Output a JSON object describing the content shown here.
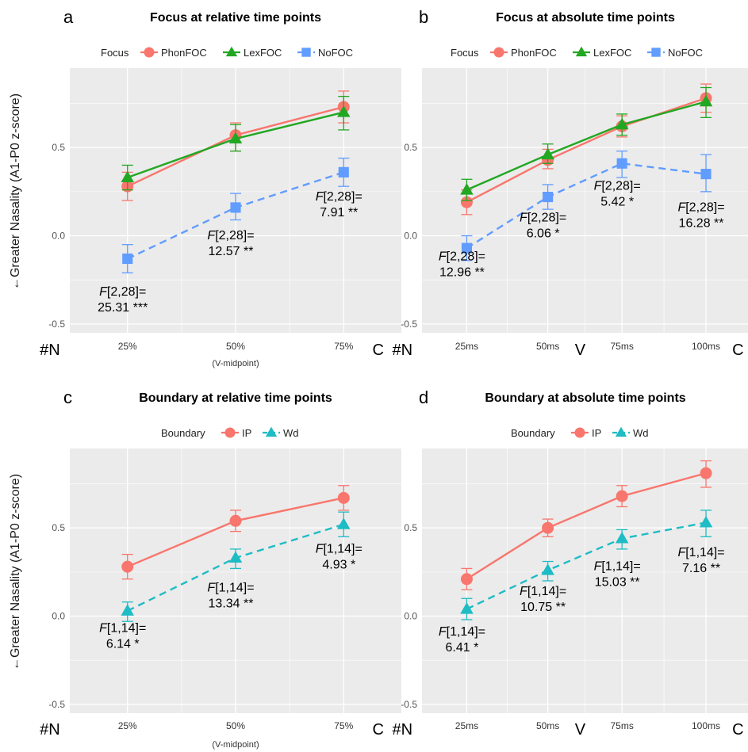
{
  "y_axis_label": "←Greater Nasality (A1-P0 z-score)",
  "colors": {
    "PhonFOC": "#f8766d",
    "LexFOC": "#22a722",
    "NoFOC": "#619cff",
    "IP": "#f8766d",
    "Wd": "#1ebcc4",
    "panel_bg": "#ebebeb",
    "grid": "#ffffff"
  },
  "chart_data": [
    {
      "type": "line",
      "panel_letter": "a",
      "title": "Focus at relative time points",
      "legend_title": "Focus",
      "legend_position": "top",
      "x": [
        "25%",
        "50%",
        "75%"
      ],
      "x_sublabel": "(V-midpoint)",
      "edge_labels": {
        "left": "#N",
        "right": "C"
      },
      "ylim": [
        -0.55,
        0.95
      ],
      "yticks": [
        -0.5,
        0.0,
        0.5
      ],
      "ytick_labels": [
        "-0.5",
        "0.0",
        "0.5"
      ],
      "grid": true,
      "series": [
        {
          "name": "PhonFOC",
          "marker": "circle",
          "dash": "solid",
          "values": [
            0.28,
            0.57,
            0.73
          ],
          "err_lo": [
            0.2,
            0.48,
            0.64
          ],
          "err_hi": [
            0.36,
            0.64,
            0.82
          ]
        },
        {
          "name": "LexFOC",
          "marker": "triangle",
          "dash": "solid",
          "values": [
            0.33,
            0.55,
            0.7
          ],
          "err_lo": [
            0.26,
            0.48,
            0.6
          ],
          "err_hi": [
            0.4,
            0.63,
            0.79
          ]
        },
        {
          "name": "NoFOC",
          "marker": "square",
          "dash": "dashed",
          "values": [
            -0.13,
            0.16,
            0.36
          ],
          "err_lo": [
            -0.21,
            0.09,
            0.28
          ],
          "err_hi": [
            -0.05,
            0.24,
            0.44
          ]
        }
      ],
      "annotations": [
        {
          "x": "25%",
          "y": -0.34,
          "line1_stat": "F",
          "line1_rest": "[2,28]=",
          "line2": "25.31 ***"
        },
        {
          "x": "50%",
          "y": -0.02,
          "line1_stat": "F",
          "line1_rest": "[2,28]=",
          "line2": "12.57 **"
        },
        {
          "x": "75%",
          "y": 0.2,
          "line1_stat": "F",
          "line1_rest": "[2,28]=",
          "line2": "7.91 **"
        }
      ]
    },
    {
      "type": "line",
      "panel_letter": "b",
      "title": "Focus at absolute time points",
      "legend_title": "Focus",
      "legend_position": "top",
      "x": [
        "25ms",
        "50ms",
        "75ms",
        "100ms"
      ],
      "edge_labels": {
        "left": "#N",
        "middle": "V",
        "right": "C"
      },
      "ylim": [
        -0.55,
        0.95
      ],
      "yticks": [
        -0.5,
        0.0,
        0.5
      ],
      "ytick_labels": [
        "-0.5",
        "0.0",
        "0.5"
      ],
      "grid": true,
      "series": [
        {
          "name": "PhonFOC",
          "marker": "circle",
          "dash": "solid",
          "values": [
            0.19,
            0.43,
            0.62,
            0.78
          ],
          "err_lo": [
            0.12,
            0.38,
            0.56,
            0.7
          ],
          "err_hi": [
            0.26,
            0.49,
            0.68,
            0.86
          ]
        },
        {
          "name": "LexFOC",
          "marker": "triangle",
          "dash": "solid",
          "values": [
            0.26,
            0.46,
            0.63,
            0.76
          ],
          "err_lo": [
            0.2,
            0.41,
            0.57,
            0.67
          ],
          "err_hi": [
            0.32,
            0.52,
            0.69,
            0.84
          ]
        },
        {
          "name": "NoFOC",
          "marker": "square",
          "dash": "dashed",
          "values": [
            -0.07,
            0.22,
            0.41,
            0.35
          ],
          "err_lo": [
            -0.14,
            0.15,
            0.33,
            0.25
          ],
          "err_hi": [
            0.0,
            0.29,
            0.48,
            0.46
          ]
        }
      ],
      "annotations": [
        {
          "x": "25ms",
          "y": -0.14,
          "line1_stat": "F",
          "line1_rest": "[2,28]=",
          "line2": "12.96 **"
        },
        {
          "x": "50ms",
          "y": 0.08,
          "line1_stat": "F",
          "line1_rest": "[2,28]=",
          "line2": "6.06 *"
        },
        {
          "x": "75ms",
          "y": 0.26,
          "line1_stat": "F",
          "line1_rest": "[2,28]=",
          "line2": "5.42 *"
        },
        {
          "x": "100ms",
          "y": 0.14,
          "line1_stat": "F",
          "line1_rest": "[2,28]=",
          "line2": "16.28 **"
        }
      ]
    },
    {
      "type": "line",
      "panel_letter": "c",
      "title": "Boundary at relative time points",
      "legend_title": "Boundary",
      "legend_position": "top",
      "x": [
        "25%",
        "50%",
        "75%"
      ],
      "x_sublabel": "(V-midpoint)",
      "edge_labels": {
        "left": "#N",
        "right": "C"
      },
      "ylim": [
        -0.55,
        0.95
      ],
      "yticks": [
        -0.5,
        0.0,
        0.5
      ],
      "ytick_labels": [
        "-0.5",
        "0.0",
        "0.5"
      ],
      "grid": true,
      "series": [
        {
          "name": "IP",
          "marker": "circle",
          "dash": "solid",
          "values": [
            0.28,
            0.54,
            0.67
          ],
          "err_lo": [
            0.21,
            0.48,
            0.6
          ],
          "err_hi": [
            0.35,
            0.6,
            0.74
          ]
        },
        {
          "name": "Wd",
          "marker": "triangle",
          "dash": "dashed",
          "values": [
            0.03,
            0.33,
            0.52
          ],
          "err_lo": [
            -0.03,
            0.27,
            0.45
          ],
          "err_hi": [
            0.08,
            0.38,
            0.59
          ]
        }
      ],
      "annotations": [
        {
          "x": "25%",
          "y": -0.09,
          "line1_stat": "F",
          "line1_rest": "[1,14]=",
          "line2": "6.14 *"
        },
        {
          "x": "50%",
          "y": 0.14,
          "line1_stat": "F",
          "line1_rest": "[1,14]=",
          "line2": "13.34 **"
        },
        {
          "x": "75%",
          "y": 0.36,
          "line1_stat": "F",
          "line1_rest": "[1,14]=",
          "line2": "4.93 *"
        }
      ]
    },
    {
      "type": "line",
      "panel_letter": "d",
      "title": "Boundary at absolute time points",
      "legend_title": "Boundary",
      "legend_position": "top",
      "x": [
        "25ms",
        "50ms",
        "75ms",
        "100ms"
      ],
      "edge_labels": {
        "left": "#N",
        "middle": "V",
        "right": "C"
      },
      "ylim": [
        -0.55,
        0.95
      ],
      "yticks": [
        -0.5,
        0.0,
        0.5
      ],
      "ytick_labels": [
        "-0.5",
        "0.0",
        "0.5"
      ],
      "grid": true,
      "series": [
        {
          "name": "IP",
          "marker": "circle",
          "dash": "solid",
          "values": [
            0.21,
            0.5,
            0.68,
            0.81
          ],
          "err_lo": [
            0.15,
            0.45,
            0.62,
            0.73
          ],
          "err_hi": [
            0.27,
            0.55,
            0.74,
            0.88
          ]
        },
        {
          "name": "Wd",
          "marker": "triangle",
          "dash": "dashed",
          "values": [
            0.04,
            0.26,
            0.44,
            0.53
          ],
          "err_lo": [
            -0.02,
            0.2,
            0.38,
            0.45
          ],
          "err_hi": [
            0.1,
            0.31,
            0.49,
            0.6
          ]
        }
      ],
      "annotations": [
        {
          "x": "25ms",
          "y": -0.11,
          "line1_stat": "F",
          "line1_rest": "[1,14]=",
          "line2": "6.41 *"
        },
        {
          "x": "50ms",
          "y": 0.12,
          "line1_stat": "F",
          "line1_rest": "[1,14]=",
          "line2": "10.75 **"
        },
        {
          "x": "75ms",
          "y": 0.26,
          "line1_stat": "F",
          "line1_rest": "[1,14]=",
          "line2": "15.03 **"
        },
        {
          "x": "100ms",
          "y": 0.34,
          "line1_stat": "F",
          "line1_rest": "[1,14]=",
          "line2": "7.16 **"
        }
      ]
    }
  ]
}
